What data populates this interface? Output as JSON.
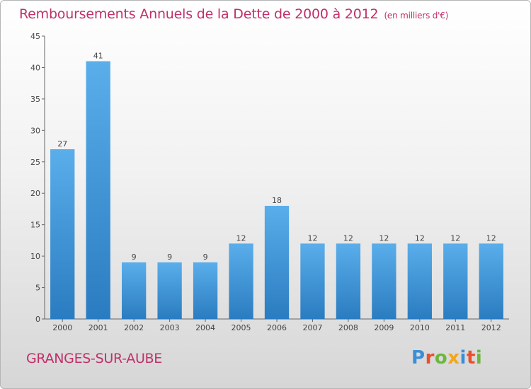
{
  "title": "Remboursements Annuels de la Dette de 2000 à 2012",
  "unit": "(en milliers d'€)",
  "city": "GRANGES-SUR-AUBE",
  "logo": {
    "text": "Proxiti",
    "colors": [
      "#3a8ed8",
      "#e8502d",
      "#6bb83a",
      "#f2a71b",
      "#3a8ed8",
      "#e8502d",
      "#6bb83a"
    ]
  },
  "colors": {
    "bar_top": "#5aaeea",
    "bar_bottom": "#2a7cc0",
    "title": "#c0306a"
  },
  "chart_data": {
    "type": "bar",
    "categories": [
      "2000",
      "2001",
      "2002",
      "2003",
      "2004",
      "2005",
      "2006",
      "2007",
      "2008",
      "2009",
      "2010",
      "2011",
      "2012"
    ],
    "values": [
      27,
      41,
      9,
      9,
      9,
      12,
      18,
      12,
      12,
      12,
      12,
      12,
      12
    ],
    "data_labels": [
      "27",
      "41",
      "9",
      "9",
      "9",
      "12",
      "18",
      "12",
      "12",
      "12",
      "12",
      "12",
      "12"
    ],
    "yticks": [
      0,
      5,
      10,
      15,
      20,
      25,
      30,
      35,
      40,
      45
    ],
    "ylim": [
      0,
      45
    ],
    "grid": false,
    "title": "Remboursements Annuels de la Dette de 2000 à 2012",
    "xlabel": "",
    "ylabel": ""
  }
}
